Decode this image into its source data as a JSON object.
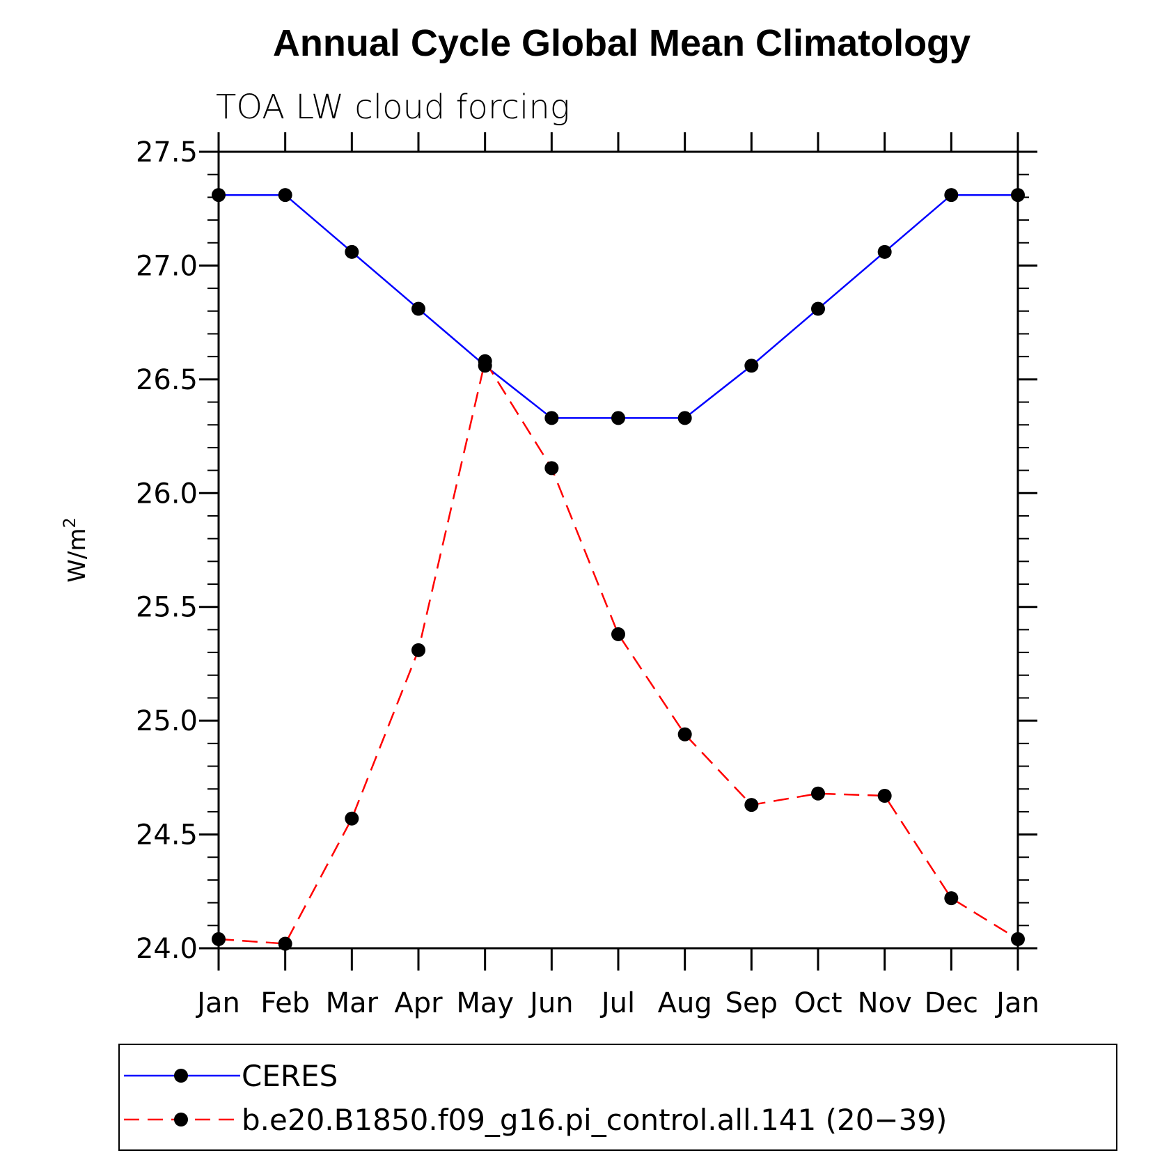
{
  "chart_data": {
    "type": "line",
    "title": "Annual Cycle Global Mean Climatology",
    "subtitle": "TOA LW cloud forcing",
    "ylabel_base": "W/m",
    "ylabel_sup": "2",
    "categories": [
      "Jan",
      "Feb",
      "Mar",
      "Apr",
      "May",
      "Jun",
      "Jul",
      "Aug",
      "Sep",
      "Oct",
      "Nov",
      "Dec",
      "Jan"
    ],
    "ylim": [
      24.0,
      27.5
    ],
    "yticks": [
      "24.0",
      "24.5",
      "25.0",
      "25.5",
      "26.0",
      "26.5",
      "27.0",
      "27.5"
    ],
    "grid": false,
    "legend_position": "bottom",
    "series": [
      {
        "name": "CERES",
        "color": "#0000ff",
        "dash": "solid",
        "values": [
          27.31,
          27.31,
          27.06,
          26.81,
          26.56,
          26.33,
          26.33,
          26.33,
          26.56,
          26.81,
          27.06,
          27.31,
          27.31
        ]
      },
      {
        "name": "b.e20.B1850.f09_g16.pi_control.all.141 (20−39)",
        "color": "#ff0000",
        "dash": "dashed",
        "values": [
          24.04,
          24.02,
          24.57,
          25.31,
          26.58,
          26.11,
          25.38,
          24.94,
          24.63,
          24.68,
          24.67,
          24.22,
          24.04
        ]
      }
    ]
  }
}
